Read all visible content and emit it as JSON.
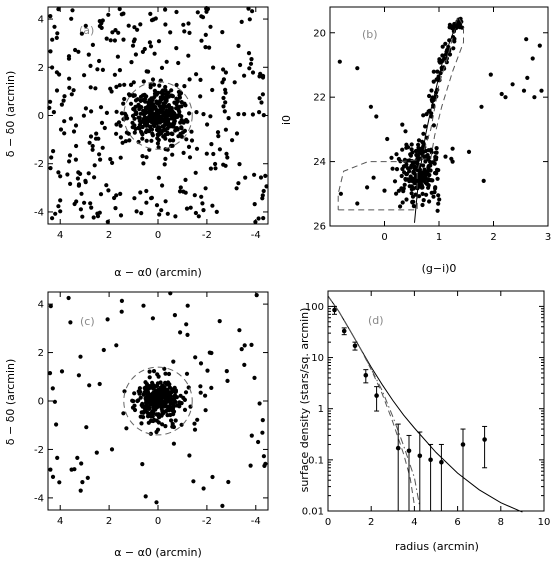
{
  "chart_data": [
    {
      "panel": "a",
      "type": "scatter",
      "label": "(a)",
      "xlabel": "α − α0 (arcmin)",
      "ylabel": "δ − δ0 (arcmin)",
      "xlim": [
        4.5,
        -4.5
      ],
      "ylim": [
        -4.5,
        4.5
      ],
      "xticks": [
        4,
        2,
        0,
        -2,
        -4
      ],
      "yticks": [
        -4,
        -2,
        0,
        2,
        4
      ],
      "circle_radius": 1.4,
      "field": {
        "seed": 11,
        "count": 360,
        "box": [
          -4.5,
          4.5,
          -4.5,
          4.5
        ]
      },
      "core": {
        "seed": 7,
        "count": 330,
        "sigma_x": 0.55,
        "sigma_y": 0.5
      }
    },
    {
      "panel": "b",
      "type": "scatter",
      "label": "(b)",
      "xlabel": "(g−i)0",
      "ylabel": "i0",
      "xlim": [
        -1,
        3
      ],
      "ylim": [
        26,
        19.2
      ],
      "xticks": [
        0,
        1,
        2,
        3
      ],
      "yticks": [
        20,
        22,
        24,
        26
      ],
      "isochrone": [
        [
          0.55,
          25.9
        ],
        [
          0.6,
          25.0
        ],
        [
          0.66,
          24.2
        ],
        [
          0.75,
          23.2
        ],
        [
          0.85,
          22.4
        ],
        [
          0.95,
          21.7
        ],
        [
          1.05,
          21.0
        ],
        [
          1.15,
          20.5
        ],
        [
          1.28,
          19.9
        ],
        [
          1.35,
          19.6
        ],
        [
          1.42,
          19.75
        ]
      ],
      "selection_box": [
        [
          -0.85,
          25.5
        ],
        [
          0.6,
          25.5
        ],
        [
          0.6,
          24.3
        ],
        [
          0.85,
          23.0
        ],
        [
          1.0,
          21.6
        ],
        [
          1.15,
          20.8
        ],
        [
          1.35,
          19.5
        ],
        [
          1.45,
          19.8
        ],
        [
          1.45,
          20.3
        ],
        [
          1.25,
          21.2
        ],
        [
          1.05,
          22.3
        ],
        [
          0.92,
          23.2
        ],
        [
          0.85,
          23.9
        ],
        [
          0.3,
          24.0
        ],
        [
          -0.3,
          24.0
        ],
        [
          -0.75,
          24.3
        ],
        [
          -0.85,
          25.0
        ],
        [
          -0.85,
          25.5
        ]
      ],
      "points": [
        [
          -0.8,
          25.0
        ],
        [
          -0.5,
          25.3
        ],
        [
          -0.32,
          24.8
        ],
        [
          -0.2,
          24.5
        ],
        [
          -0.25,
          22.3
        ],
        [
          -0.15,
          22.6
        ],
        [
          0.05,
          23.3
        ],
        [
          -0.5,
          21.1
        ],
        [
          -0.82,
          20.9
        ],
        [
          0.0,
          24.9
        ],
        [
          1.78,
          22.3
        ],
        [
          1.95,
          21.3
        ],
        [
          2.15,
          21.9
        ],
        [
          2.22,
          22.0
        ],
        [
          2.35,
          21.6
        ],
        [
          2.56,
          21.8
        ],
        [
          2.6,
          20.2
        ],
        [
          2.62,
          21.4
        ],
        [
          2.75,
          22.0
        ],
        [
          2.72,
          20.8
        ],
        [
          2.88,
          21.8
        ],
        [
          2.85,
          20.4
        ],
        [
          1.82,
          24.6
        ],
        [
          1.55,
          23.7
        ],
        [
          1.25,
          23.6
        ],
        [
          1.25,
          24.0
        ]
      ],
      "rgb_seed": 23,
      "rgb_count": 120,
      "blob": {
        "seed": 31,
        "count": 210,
        "cx": 0.62,
        "cy": 24.3,
        "sx": 0.22,
        "sy": 0.5
      }
    },
    {
      "panel": "c",
      "type": "scatter",
      "label": "(c)",
      "xlabel": "α − α0 (arcmin)",
      "ylabel": "δ − δ0 (arcmin)",
      "xlim": [
        4.5,
        -4.5
      ],
      "ylim": [
        -4.5,
        4.5
      ],
      "xticks": [
        4,
        2,
        0,
        -2,
        -4
      ],
      "yticks": [
        -4,
        -2,
        0,
        2,
        4
      ],
      "circle_radius": 1.4,
      "field": {
        "seed": 41,
        "count": 95,
        "box": [
          -4.5,
          4.5,
          -4.5,
          4.5
        ]
      },
      "core": {
        "seed": 53,
        "count": 300,
        "sigma_x": 0.5,
        "sigma_y": 0.45
      }
    },
    {
      "panel": "d",
      "type": "line",
      "label": "(d)",
      "xlabel": "radius (arcmin)",
      "ylabel": "surface density (stars/sq. arcmin)",
      "xlim": [
        0,
        10
      ],
      "ylim": [
        0.01,
        200
      ],
      "yscale": "log",
      "xticks": [
        0,
        2,
        4,
        6,
        8,
        10
      ],
      "yticks": [
        0.01,
        0.1,
        1,
        10,
        100
      ],
      "ytick_labels": [
        "0.01",
        "0.1",
        "1",
        "10",
        "100"
      ],
      "points": [
        {
          "x": 0.3,
          "y": 85,
          "lo": 70,
          "hi": 100
        },
        {
          "x": 0.75,
          "y": 33,
          "lo": 28,
          "hi": 38
        },
        {
          "x": 1.25,
          "y": 17,
          "lo": 14,
          "hi": 20
        },
        {
          "x": 1.75,
          "y": 4.5,
          "lo": 3.2,
          "hi": 5.8
        },
        {
          "x": 2.25,
          "y": 1.8,
          "lo": 0.9,
          "hi": 2.7
        },
        {
          "x": 3.25,
          "y": 0.17,
          "lo": 0.01,
          "hi": 0.5
        },
        {
          "x": 3.75,
          "y": 0.15,
          "lo": 0.01,
          "hi": 0.3
        },
        {
          "x": 4.25,
          "y": 0.12,
          "lo": 0.01,
          "hi": 0.35
        },
        {
          "x": 4.75,
          "y": 0.1,
          "lo": 0.01,
          "hi": 0.2
        },
        {
          "x": 5.25,
          "y": 0.09,
          "lo": 0.01,
          "hi": 0.2
        },
        {
          "x": 6.25,
          "y": 0.2,
          "lo": 0.01,
          "hi": 0.4
        },
        {
          "x": 7.25,
          "y": 0.25,
          "lo": 0.07,
          "hi": 0.45
        }
      ],
      "curves": [
        {
          "style": "solid",
          "points": [
            [
              0,
              160
            ],
            [
              0.5,
              80
            ],
            [
              1,
              35
            ],
            [
              1.5,
              15
            ],
            [
              2,
              6.5
            ],
            [
              2.5,
              3
            ],
            [
              3,
              1.45
            ],
            [
              3.5,
              0.75
            ],
            [
              4,
              0.42
            ],
            [
              5,
              0.14
            ],
            [
              6,
              0.055
            ],
            [
              7,
              0.026
            ],
            [
              8,
              0.0145
            ],
            [
              9,
              0.0095
            ]
          ]
        },
        {
          "style": "dashed",
          "points": [
            [
              0,
              160
            ],
            [
              0.5,
              80
            ],
            [
              1,
              35
            ],
            [
              1.5,
              15
            ],
            [
              2,
              5.8
            ],
            [
              2.5,
              2.0
            ],
            [
              3,
              0.55
            ],
            [
              3.5,
              0.13
            ],
            [
              3.8,
              0.045
            ],
            [
              4.0,
              0.013
            ]
          ]
        },
        {
          "style": "dashdot",
          "points": [
            [
              0,
              160
            ],
            [
              0.5,
              80
            ],
            [
              1,
              35
            ],
            [
              1.5,
              15
            ],
            [
              2,
              6
            ],
            [
              2.5,
              2.3
            ],
            [
              3,
              0.7
            ],
            [
              3.5,
              0.19
            ],
            [
              4,
              0.045
            ],
            [
              4.25,
              0.012
            ]
          ]
        }
      ]
    }
  ]
}
